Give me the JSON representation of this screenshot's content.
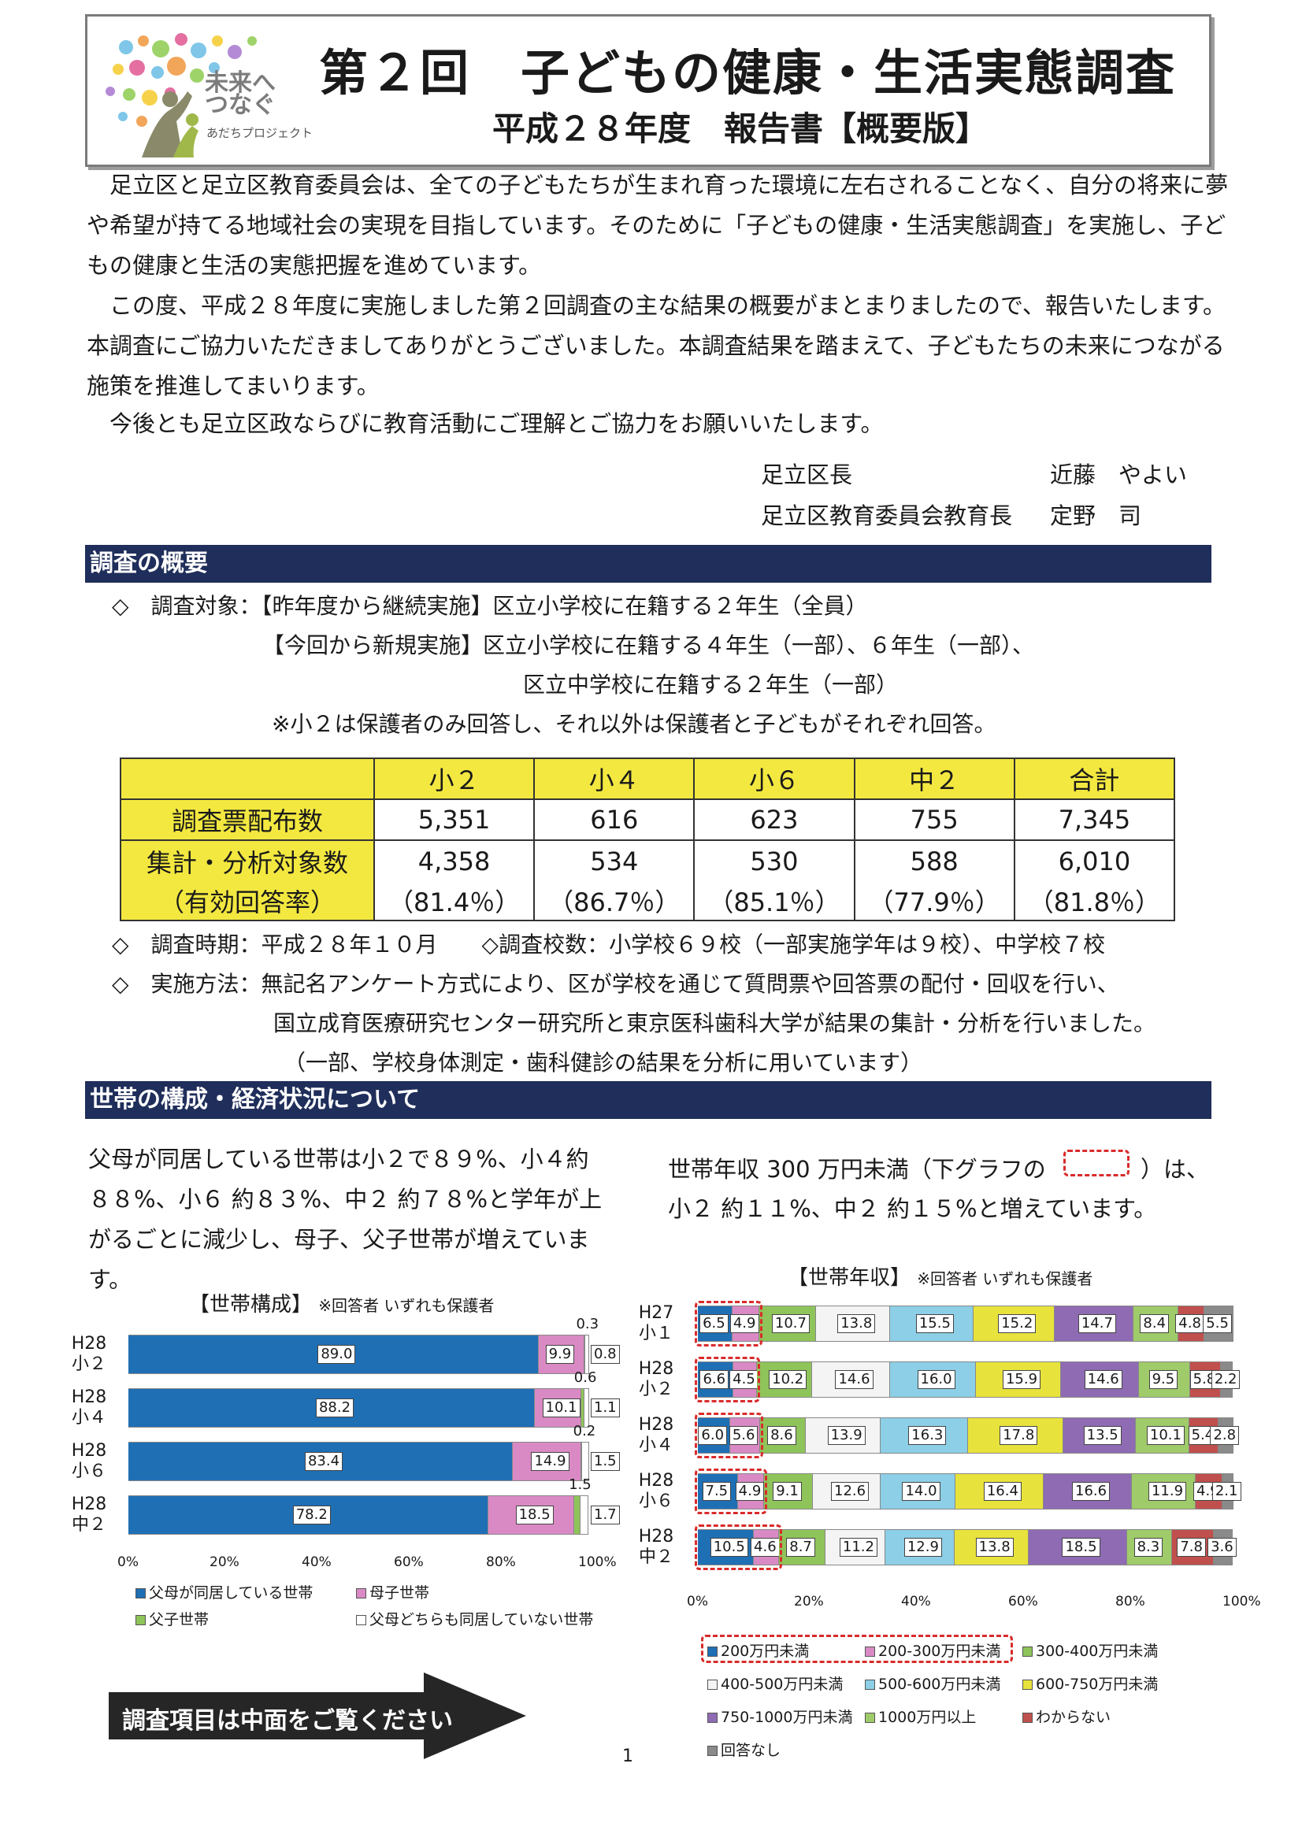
{
  "header": {
    "logo_text_1": "未来へ",
    "logo_text_2": "つなぐ",
    "logo_text_3": "あだちプロジェクト",
    "title": "第２回　子どもの健康・生活実態調査",
    "subtitle": "平成２８年度　報告書【概要版】"
  },
  "intro": {
    "p1": "　足立区と足立区教育委員会は、全ての子どもたちが生まれ育った環境に左右されることなく、自分の将来に夢や希望が持てる地域社会の実現を目指しています。そのために「子どもの健康・生活実態調査」を実施し、子どもの健康と生活の実態把握を進めています。",
    "p2": "　この度、平成２８年度に実施しました第２回調査の主な結果の概要がまとまりましたので、報告いたします。本調査にご協力いただきましてありがとうございました。本調査結果を踏まえて、子どもたちの未来につながる施策を推進してまいります。",
    "p3": "　今後とも足立区政ならびに教育活動にご理解とご協力をお願いいたします。",
    "sign1_role": "足立区長",
    "sign1_name": "近藤　やよい",
    "sign2_role": "足立区教育委員会教育長",
    "sign2_name": "定野　司"
  },
  "overview": {
    "heading": "調査の概要",
    "target_1": "◇　調査対象：【昨年度から継続実施】区立小学校に在籍する２年生（全員）",
    "target_2": "【今回から新規実施】区立小学校に在籍する４年生（一部）、６年生（一部）、",
    "target_3": "区立中学校に在籍する２年生（一部）",
    "target_note": "※小２は保護者のみ回答し、それ以外は保護者と子どもがそれぞれ回答。",
    "table": {
      "headers": [
        "",
        "小２",
        "小４",
        "小６",
        "中２",
        "合計"
      ],
      "row1_label": "調査票配布数",
      "row1": [
        "5,351",
        "616",
        "623",
        "755",
        "7,345"
      ],
      "row2_label": "集計・分析対象数",
      "row2": [
        "4,358",
        "534",
        "530",
        "588",
        "6,010"
      ],
      "row3_label": "（有効回答率）",
      "row3": [
        "（81.4％）",
        "（86.7％）",
        "（85.1％）",
        "（77.9％）",
        "（81.8％）"
      ]
    },
    "period": "◇　調査時期：平成２８年１０月　　◇調査校数：小学校６９校（一部実施学年は９校）、中学校７校",
    "method_1": "◇　実施方法：無記名アンケート方式により、区が学校を通じて質問票や回答票の配付・回収を行い、",
    "method_2": "国立成育医療研究センター研究所と東京医科歯科大学が結果の集計・分析を行いました。",
    "method_3": "（一部、学校身体測定・歯科健診の結果を分析に用いています）"
  },
  "household": {
    "heading": "世帯の構成・経済状況について",
    "left_text": "父母が同居している世帯は小２で８９%、小４約８８%、小６ 約８３%、中２ 約７８%と学年が上がるごとに減少し、母子、父子世帯が増えています。",
    "right_text_1": "世帯年収 300 万円未満（下グラフの",
    "right_text_2": "）は、",
    "right_text_3": "小２ 約１１%、中２ 約１５%と増えています。",
    "arrow_text": "調査項目は中面をご覧ください",
    "page_number": "1"
  },
  "chart_data": [
    {
      "type": "bar",
      "orientation": "horizontal-stacked-100",
      "title": "【世帯構成】",
      "note": "※回答者 いずれも保護者",
      "categories": [
        "H28\n小２",
        "H28\n小４",
        "H28\n小６",
        "H28\n中２"
      ],
      "xlim": [
        0,
        100
      ],
      "x_ticks": [
        "0%",
        "20%",
        "40%",
        "60%",
        "80%",
        "100%"
      ],
      "series": [
        {
          "name": "父母が同居している世帯",
          "color": "#1f6fb5",
          "values": [
            89.0,
            88.2,
            83.4,
            78.2
          ]
        },
        {
          "name": "母子世帯",
          "color": "#d98ac4",
          "values": [
            9.9,
            10.1,
            14.9,
            18.5
          ]
        },
        {
          "name": "父子世帯",
          "color": "#8fc45a",
          "values": [
            0.3,
            0.6,
            0.2,
            1.5
          ]
        },
        {
          "name": "父母どちらも同居していない世帯",
          "color": "#ffffff",
          "values": [
            0.8,
            1.1,
            1.5,
            1.7
          ]
        }
      ],
      "legend": "bottom"
    },
    {
      "type": "bar",
      "orientation": "horizontal-stacked-100",
      "title": "【世帯年収】",
      "note": "※回答者 いずれも保護者",
      "categories": [
        "H27\n小１",
        "H28\n小２",
        "H28\n小４",
        "H28\n小６",
        "H28\n中２"
      ],
      "xlim": [
        0,
        100
      ],
      "x_ticks": [
        "0%",
        "20%",
        "40%",
        "60%",
        "80%",
        "100%"
      ],
      "series": [
        {
          "name": "200万円未満",
          "color": "#1f6fb5",
          "values": [
            6.5,
            6.6,
            6.0,
            7.5,
            10.5
          ]
        },
        {
          "name": "200-300万円未満",
          "color": "#d98ac4",
          "values": [
            4.9,
            4.5,
            5.6,
            4.9,
            4.6
          ]
        },
        {
          "name": "300-400万円未満",
          "color": "#8fc45a",
          "values": [
            10.7,
            10.2,
            8.6,
            9.1,
            8.7
          ]
        },
        {
          "name": "400-500万円未満",
          "color": "#f4f4f4",
          "values": [
            13.8,
            14.6,
            13.9,
            12.6,
            11.2
          ]
        },
        {
          "name": "500-600万円未満",
          "color": "#8ccfe6",
          "values": [
            15.5,
            16.0,
            16.3,
            14.0,
            12.9
          ]
        },
        {
          "name": "600-750万円未満",
          "color": "#e8e33c",
          "values": [
            15.2,
            15.9,
            17.8,
            16.4,
            13.8
          ]
        },
        {
          "name": "750-1000万円未満",
          "color": "#8f6bb3",
          "values": [
            14.7,
            14.6,
            13.5,
            16.6,
            18.5
          ]
        },
        {
          "name": "1000万円以上",
          "color": "#9fcb6a",
          "values": [
            8.4,
            9.5,
            10.1,
            11.9,
            8.3
          ]
        },
        {
          "name": "わからない",
          "color": "#c0504d",
          "values": [
            4.8,
            5.8,
            5.4,
            4.9,
            7.8
          ]
        },
        {
          "name": "回答なし",
          "color": "#8a8a8a",
          "values": [
            5.5,
            2.2,
            2.8,
            2.1,
            3.6
          ]
        }
      ],
      "highlight_series": [
        "200万円未満",
        "200-300万円未満"
      ],
      "legend": "bottom"
    }
  ]
}
